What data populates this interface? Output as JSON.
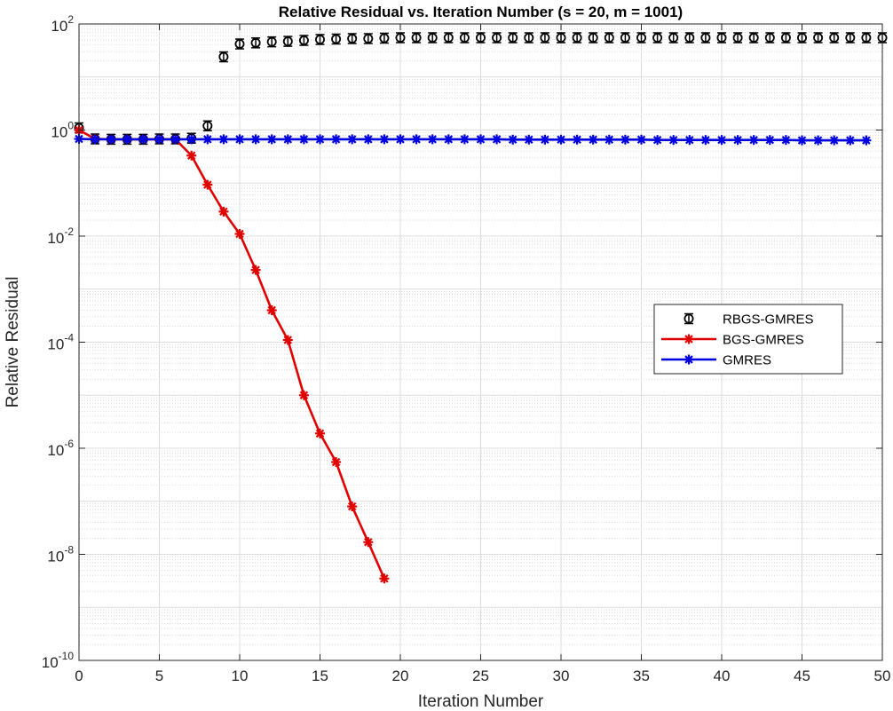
{
  "chart_data": {
    "type": "line",
    "title": "Relative Residual vs. Iteration Number (s = 20, m = 1001)",
    "xlabel": "Iteration Number",
    "ylabel": "Relative Residual",
    "xlim": [
      0,
      50
    ],
    "ylim_exponent": [
      -10,
      2
    ],
    "yscale": "log",
    "grid": true,
    "legend_position": "right",
    "x_ticks": [
      "0",
      "5",
      "10",
      "15",
      "20",
      "25",
      "30",
      "35",
      "40",
      "45",
      "50"
    ],
    "y_ticks": [
      {
        "base": "10",
        "exp": "2"
      },
      {
        "base": "10",
        "exp": "0"
      },
      {
        "base": "10",
        "exp": "-2"
      },
      {
        "base": "10",
        "exp": "-4"
      },
      {
        "base": "10",
        "exp": "-6"
      },
      {
        "base": "10",
        "exp": "-8"
      },
      {
        "base": "10",
        "exp": "-10"
      }
    ],
    "series": [
      {
        "name": "RBGS-GMRES",
        "color": "#000000",
        "marker": "circle-errorbar",
        "line": false,
        "x": [
          0,
          1,
          2,
          3,
          4,
          5,
          6,
          7,
          8,
          9,
          10,
          11,
          12,
          13,
          14,
          15,
          16,
          17,
          18,
          19,
          20,
          21,
          22,
          23,
          24,
          25,
          26,
          27,
          28,
          29,
          30,
          31,
          32,
          33,
          34,
          35,
          36,
          37,
          38,
          39,
          40,
          41,
          42,
          43,
          44,
          45,
          46,
          47,
          48,
          49,
          50
        ],
        "y": [
          1.1,
          0.68,
          0.67,
          0.67,
          0.67,
          0.68,
          0.68,
          0.7,
          1.2,
          24,
          42,
          44,
          46,
          47,
          49,
          51,
          52,
          53,
          53,
          54,
          55,
          55,
          55,
          55,
          55,
          55,
          55,
          55,
          55,
          55,
          55,
          55,
          55,
          55,
          55,
          55,
          55,
          55,
          55,
          55,
          55,
          55,
          55,
          55,
          55,
          55,
          55,
          55,
          55,
          55,
          55
        ]
      },
      {
        "name": "BGS-GMRES",
        "color": "#e00000",
        "marker": "asterisk",
        "line": true,
        "x": [
          0,
          1,
          2,
          3,
          4,
          5,
          6,
          7,
          8,
          9,
          10,
          11,
          12,
          13,
          14,
          15,
          16,
          17,
          18,
          19
        ],
        "y": [
          1.0,
          0.68,
          0.67,
          0.67,
          0.67,
          0.67,
          0.67,
          0.33,
          0.093,
          0.029,
          0.011,
          0.0023,
          0.0004,
          0.00011,
          1e-05,
          1.9e-06,
          5.5e-07,
          8e-08,
          1.7e-08,
          3.5e-09
        ]
      },
      {
        "name": "GMRES",
        "color": "#0000e0",
        "marker": "asterisk",
        "line": true,
        "x": [
          0,
          1,
          2,
          3,
          4,
          5,
          6,
          7,
          8,
          9,
          10,
          11,
          12,
          13,
          14,
          15,
          16,
          17,
          18,
          19,
          20,
          21,
          22,
          23,
          24,
          25,
          26,
          27,
          28,
          29,
          30,
          31,
          32,
          33,
          34,
          35,
          36,
          37,
          38,
          39,
          40,
          41,
          42,
          43,
          44,
          45,
          46,
          47,
          48,
          49
        ],
        "y": [
          0.68,
          0.67,
          0.67,
          0.67,
          0.67,
          0.67,
          0.67,
          0.67,
          0.67,
          0.67,
          0.67,
          0.67,
          0.67,
          0.67,
          0.67,
          0.67,
          0.67,
          0.67,
          0.67,
          0.67,
          0.67,
          0.67,
          0.67,
          0.67,
          0.67,
          0.67,
          0.67,
          0.66,
          0.66,
          0.66,
          0.66,
          0.66,
          0.66,
          0.66,
          0.66,
          0.66,
          0.65,
          0.65,
          0.65,
          0.65,
          0.65,
          0.65,
          0.65,
          0.65,
          0.65,
          0.64,
          0.64,
          0.64,
          0.64,
          0.64
        ]
      }
    ]
  }
}
